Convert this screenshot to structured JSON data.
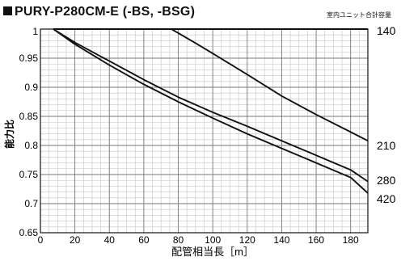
{
  "page_title": "PURY-P280CM-E (-BS, -BSG)",
  "legend_title": "室内ユニット合計容量",
  "chart_data": {
    "type": "line",
    "title": "PURY-P280CM-E (-BS, -BSG)",
    "xlabel": "配管相当長［m］",
    "ylabel": "能力比",
    "xlim": [
      0,
      190
    ],
    "ylim": [
      0.65,
      1.0
    ],
    "x_ticks": [
      0,
      20,
      40,
      60,
      80,
      100,
      120,
      140,
      160,
      180
    ],
    "y_ticks": [
      0.65,
      0.7,
      0.75,
      0.8,
      0.85,
      0.9,
      0.95
    ],
    "grid": true,
    "legend_title": "室内ユニット合計容量",
    "series": [
      {
        "name": "140",
        "x": [
          7.5,
          60,
          80,
          100,
          120,
          140,
          160,
          180,
          190
        ],
        "y": [
          1.0,
          1.0,
          1.0,
          1.0,
          1.0,
          1.0,
          1.0,
          1.0,
          1.0
        ]
      },
      {
        "name": "210",
        "x": [
          76,
          90,
          100,
          120,
          140,
          160,
          180,
          190
        ],
        "y": [
          1.0,
          0.976,
          0.958,
          0.922,
          0.885,
          0.853,
          0.823,
          0.808
        ]
      },
      {
        "name": "280",
        "x": [
          7.5,
          20,
          40,
          60,
          80,
          100,
          120,
          140,
          160,
          180,
          190
        ],
        "y": [
          1.0,
          0.977,
          0.945,
          0.913,
          0.883,
          0.857,
          0.833,
          0.808,
          0.783,
          0.758,
          0.738
        ]
      },
      {
        "name": "420",
        "x": [
          7.5,
          20,
          40,
          60,
          80,
          100,
          120,
          140,
          160,
          180,
          190
        ],
        "y": [
          1.0,
          0.974,
          0.938,
          0.905,
          0.875,
          0.847,
          0.82,
          0.795,
          0.77,
          0.745,
          0.718
        ]
      }
    ],
    "label_values": {
      "140": 0.997,
      "210": 0.8,
      "280": 0.74,
      "420": 0.708
    }
  }
}
